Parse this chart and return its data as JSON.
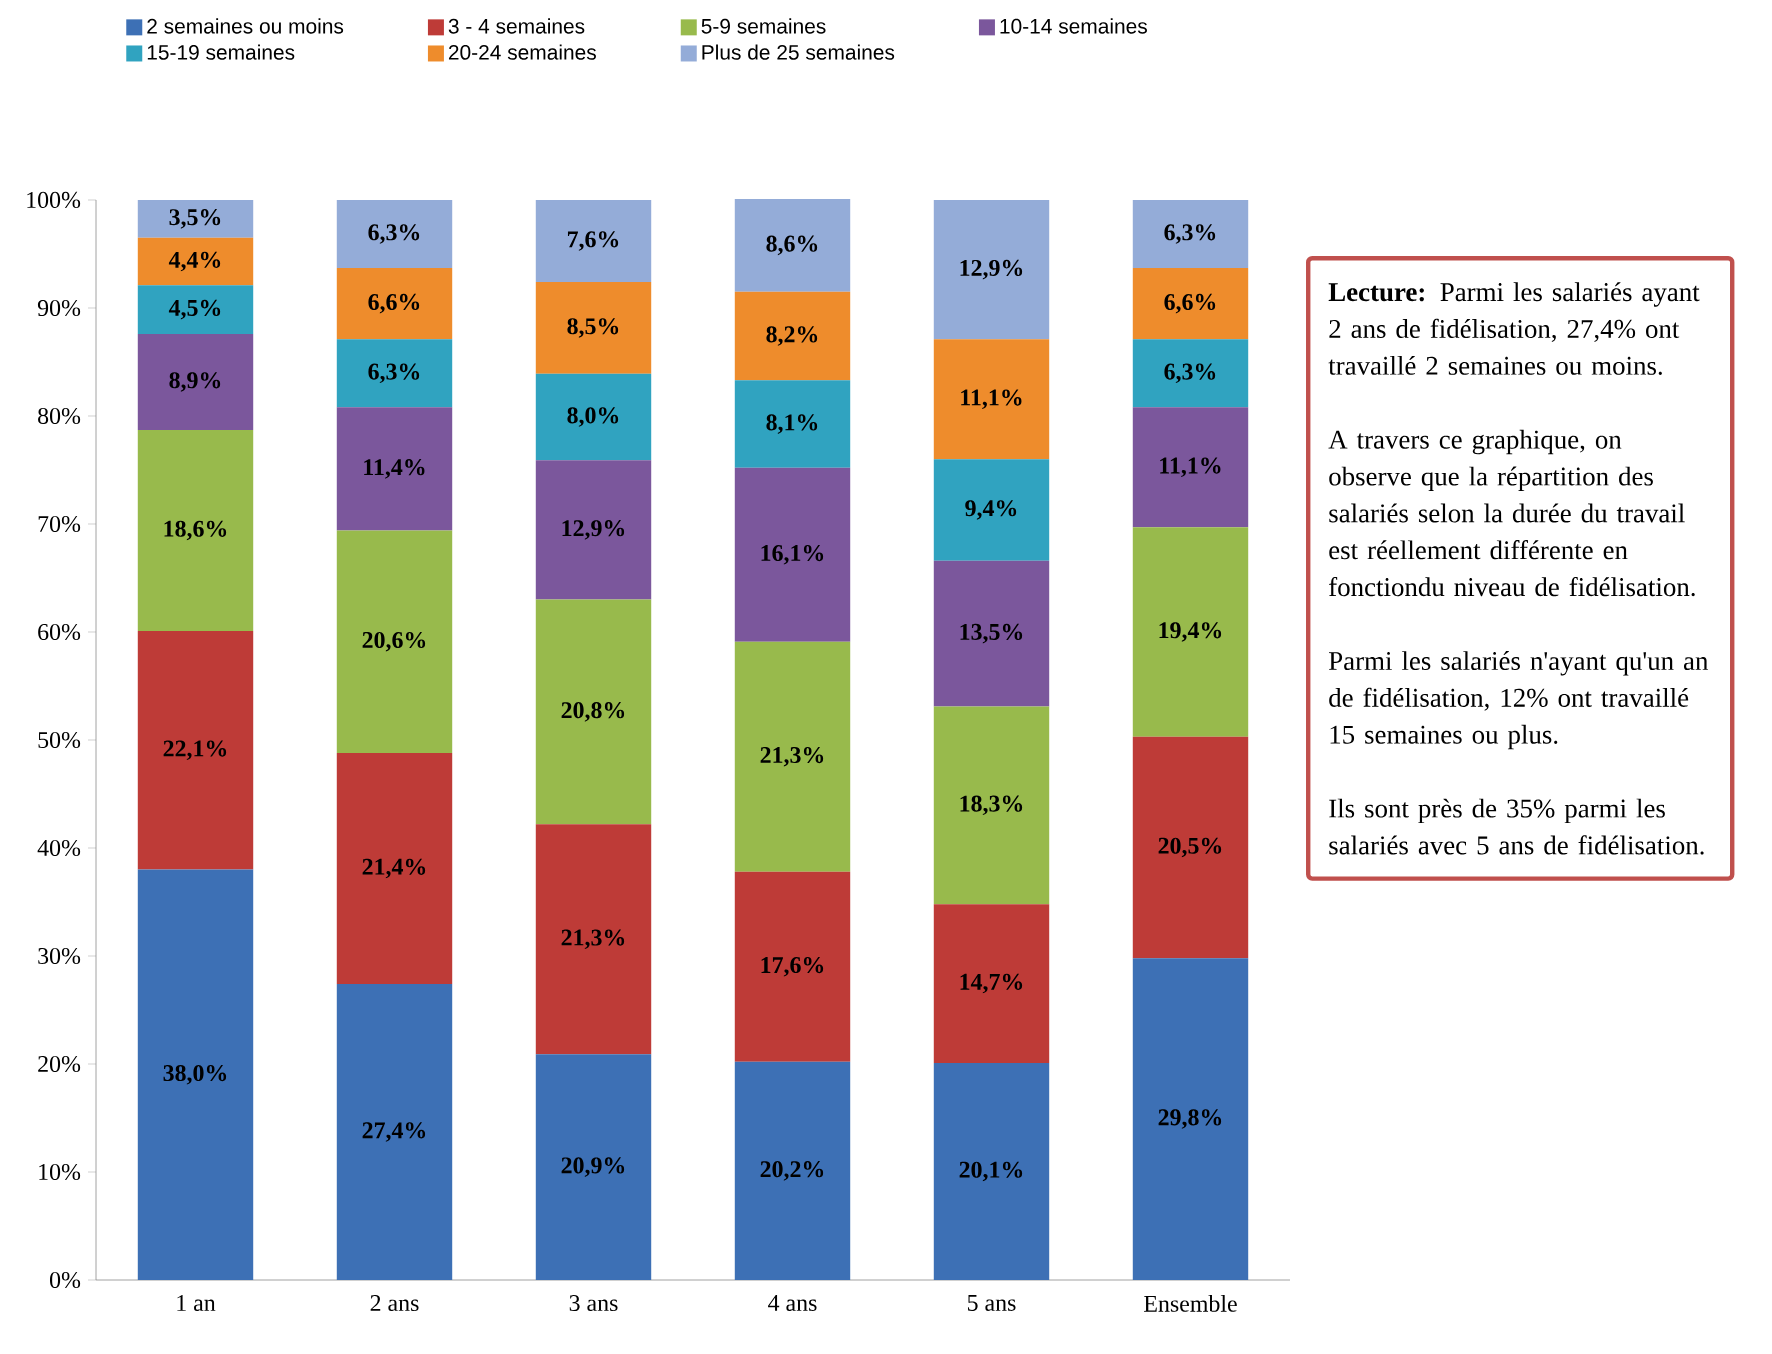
{
  "chart_data": {
    "type": "bar",
    "stacked": true,
    "legend": "top",
    "categories": [
      "1 an",
      "2 ans",
      "3 ans",
      "4 ans",
      "5 ans",
      "Ensemble"
    ],
    "ylim": [
      0,
      100
    ],
    "yticks": [
      {
        "value": 0,
        "label": "0%"
      },
      {
        "value": 10,
        "label": "10%"
      },
      {
        "value": 20,
        "label": "20%"
      },
      {
        "value": 30,
        "label": "30%"
      },
      {
        "value": 40,
        "label": "40%"
      },
      {
        "value": 50,
        "label": "50%"
      },
      {
        "value": 60,
        "label": "60%"
      },
      {
        "value": 70,
        "label": "70%"
      },
      {
        "value": 80,
        "label": "80%"
      },
      {
        "value": 90,
        "label": "90%"
      },
      {
        "value": 100,
        "label": "100%"
      }
    ],
    "series": [
      {
        "name": "2 semaines ou moins",
        "color": "#3d70b5",
        "values": [
          38.0,
          27.4,
          20.9,
          20.2,
          20.1,
          29.8
        ],
        "value_labels": [
          "38,0%",
          "27,4%",
          "20,9%",
          "20,2%",
          "20,1%",
          "29,8%"
        ]
      },
      {
        "name": "3 - 4 semaines",
        "color": "#be3b37",
        "values": [
          22.1,
          21.4,
          21.3,
          17.6,
          14.7,
          20.5
        ],
        "value_labels": [
          "22,1%",
          "21,4%",
          "21,3%",
          "17,6%",
          "14,7%",
          "20,5%"
        ]
      },
      {
        "name": "5-9 semaines",
        "color": "#98ba4c",
        "values": [
          18.6,
          20.6,
          20.8,
          21.3,
          18.3,
          19.4
        ],
        "value_labels": [
          "18,6%",
          "20,6%",
          "20,8%",
          "21,3%",
          "18,3%",
          "19,4%"
        ]
      },
      {
        "name": "10-14 semaines",
        "color": "#7b579c",
        "values": [
          8.9,
          11.4,
          12.9,
          16.1,
          13.5,
          11.1
        ],
        "value_labels": [
          "8,9%",
          "11,4%",
          "12,9%",
          "16,1%",
          "13,5%",
          "11,1%"
        ]
      },
      {
        "name": "15-19 semaines",
        "color": "#30a3c0",
        "values": [
          4.5,
          6.3,
          8.0,
          8.1,
          9.4,
          6.3
        ],
        "value_labels": [
          "4,5%",
          "6,3%",
          "8,0%",
          "8,1%",
          "9,4%",
          "6,3%"
        ]
      },
      {
        "name": "20-24 semaines",
        "color": "#ee8c2c",
        "values": [
          4.4,
          6.6,
          8.5,
          8.2,
          11.1,
          6.6
        ],
        "value_labels": [
          "4,4%",
          "6,6%",
          "8,5%",
          "8,2%",
          "11,1%",
          "6,6%"
        ]
      },
      {
        "name": "Plus de 25 semaines",
        "color": "#94acd8",
        "values": [
          3.5,
          6.3,
          7.6,
          8.6,
          12.9,
          6.3
        ],
        "value_labels": [
          "3,5%",
          "6,3%",
          "7,6%",
          "8,6%",
          "12,9%",
          "6,3%"
        ]
      }
    ],
    "annotations": [
      "**Lecture:** Parmi les salariés ayant 2 ans de fidélisation, 27,4% ont travaillé 2 semaines ou moins.",
      "A travers ce graphique, on observe que la répartition des salariés selon la durée du travail est réellement différente en fonctiondu niveau de fidélisation.",
      "Parmi les salariés n'ayant qu'un an de fidélisation, 12% ont travaillé 15 semaines ou plus.",
      "Ils sont près de 35% parmi les salariés avec 5 ans de fidélisation."
    ]
  }
}
